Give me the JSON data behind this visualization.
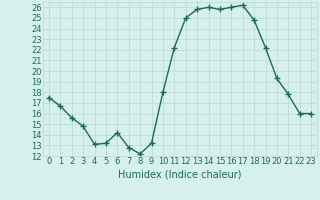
{
  "x": [
    0,
    1,
    2,
    3,
    4,
    5,
    6,
    7,
    8,
    9,
    10,
    11,
    12,
    13,
    14,
    15,
    16,
    17,
    18,
    19,
    20,
    21,
    22,
    23
  ],
  "y": [
    17.5,
    16.7,
    15.6,
    14.8,
    13.1,
    13.2,
    14.2,
    12.8,
    12.2,
    13.2,
    18.0,
    22.2,
    25.0,
    25.8,
    26.0,
    25.8,
    26.0,
    26.2,
    24.8,
    22.2,
    19.3,
    17.8,
    16.0,
    16.0
  ],
  "xlabel": "Humidex (Indice chaleur)",
  "ylim": [
    12,
    26.5
  ],
  "xlim": [
    -0.5,
    23.5
  ],
  "yticks": [
    12,
    13,
    14,
    15,
    16,
    17,
    18,
    19,
    20,
    21,
    22,
    23,
    24,
    25,
    26
  ],
  "xticks": [
    0,
    1,
    2,
    3,
    4,
    5,
    6,
    7,
    8,
    9,
    10,
    11,
    12,
    13,
    14,
    15,
    16,
    17,
    18,
    19,
    20,
    21,
    22,
    23
  ],
  "line_color": "#1a6b5a",
  "marker": "+",
  "bg_color": "#d6f0ee",
  "grid_color": "#b8d8d4",
  "axis_label_color": "#1a6b5a",
  "tick_color": "#1a6b5a",
  "xlabel_fontsize": 7,
  "tick_fontsize": 6,
  "linewidth": 1.0,
  "markersize": 4,
  "markeredgewidth": 1.0
}
